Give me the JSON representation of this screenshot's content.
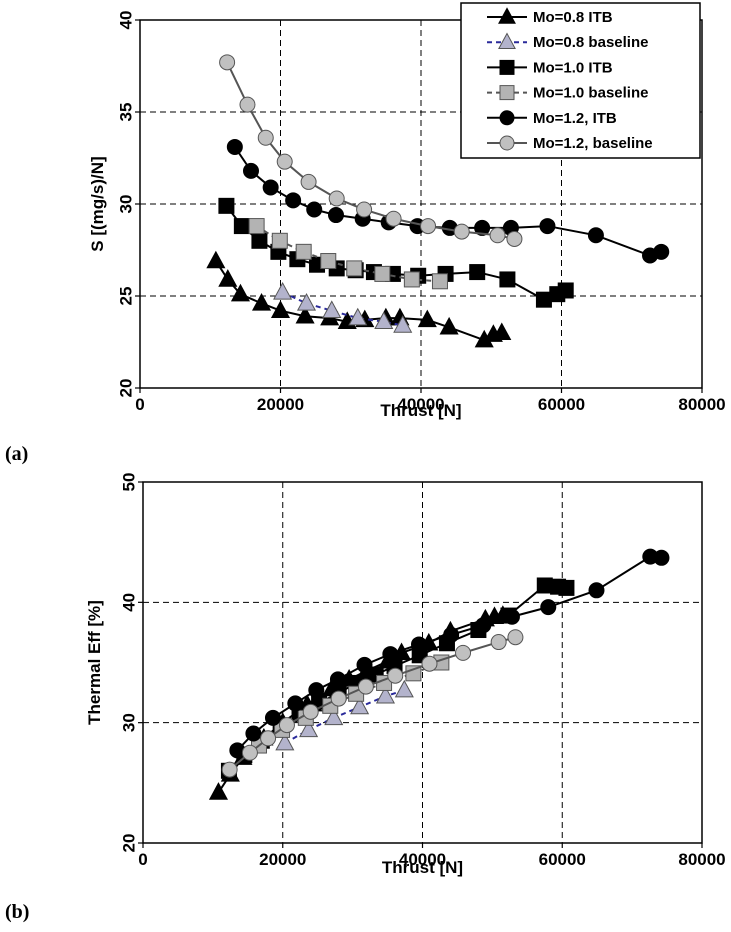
{
  "chart_data": [
    {
      "type": "line",
      "panel_label": "(a)",
      "xlabel": "Thrust [N]",
      "ylabel": "S [(mg/s)/N]",
      "xlim": [
        0,
        80000
      ],
      "ylim": [
        20,
        40
      ],
      "xticks": [
        0,
        20000,
        40000,
        60000,
        80000
      ],
      "yticks": [
        20,
        25,
        30,
        35,
        40
      ],
      "xtick_labels": [
        "0",
        "20000",
        "40000",
        "60000",
        "80000"
      ],
      "ytick_labels": [
        "20",
        "25",
        "30",
        "35",
        "40"
      ],
      "grid": "dashed major gridlines",
      "legend_position": "top-right",
      "series": [
        {
          "name": "Mo=0.8 ITB",
          "marker": "triangle",
          "fill": "#000000",
          "line_color": "#000000",
          "dash": "solid",
          "x": [
            10800,
            12500,
            14300,
            17300,
            20000,
            23500,
            27000,
            29500,
            32000,
            35000,
            37000,
            40900,
            44000,
            49000,
            50300,
            51500
          ],
          "y": [
            26.9,
            25.9,
            25.1,
            24.6,
            24.2,
            23.9,
            23.8,
            23.6,
            23.7,
            23.8,
            23.8,
            23.7,
            23.3,
            22.6,
            22.9,
            23.0
          ]
        },
        {
          "name": "Mo=0.8 baseline",
          "marker": "triangle",
          "fill": "#b3b3cc",
          "line_color": "#2a2a9a",
          "dash": "dashed",
          "x": [
            20300,
            23700,
            27300,
            31000,
            34700,
            37400
          ],
          "y": [
            25.2,
            24.6,
            24.2,
            23.8,
            23.6,
            23.4
          ]
        },
        {
          "name": "Mo=1.0 ITB",
          "marker": "square",
          "fill": "#000000",
          "line_color": "#000000",
          "dash": "solid",
          "x": [
            12300,
            14500,
            17000,
            19700,
            22400,
            25200,
            28000,
            30700,
            33300,
            36000,
            39600,
            43500,
            48000,
            52300,
            57500,
            59400,
            60600
          ],
          "y": [
            29.9,
            28.8,
            28.0,
            27.4,
            27.0,
            26.7,
            26.5,
            26.4,
            26.3,
            26.2,
            26.1,
            26.2,
            26.3,
            25.9,
            24.8,
            25.1,
            25.3
          ]
        },
        {
          "name": "Mo=1.0 baseline",
          "marker": "square",
          "fill": "#b3b3b3",
          "line_color": "#555555",
          "dash": "dashed",
          "x": [
            16600,
            19900,
            23300,
            26800,
            30500,
            34500,
            38700,
            42700
          ],
          "y": [
            28.8,
            28.0,
            27.4,
            26.9,
            26.5,
            26.2,
            25.9,
            25.8
          ]
        },
        {
          "name": "Mo=1.2, ITB",
          "marker": "circle",
          "fill": "#000000",
          "line_color": "#000000",
          "dash": "solid",
          "x": [
            13500,
            15800,
            18600,
            21800,
            24800,
            27900,
            31700,
            35400,
            39500,
            44100,
            48700,
            52800,
            58000,
            64900,
            72600,
            74200
          ],
          "y": [
            33.1,
            31.8,
            30.9,
            30.2,
            29.7,
            29.4,
            29.2,
            29.0,
            28.8,
            28.7,
            28.7,
            28.7,
            28.8,
            28.3,
            27.2,
            27.4
          ]
        },
        {
          "name": "Mo=1.2, baseline",
          "marker": "circle",
          "fill": "#c0c0c0",
          "line_color": "#555555",
          "dash": "solid",
          "x": [
            12400,
            15300,
            17900,
            20600,
            24000,
            28000,
            31900,
            36100,
            41000,
            45800,
            50900,
            53300
          ],
          "y": [
            37.7,
            35.4,
            33.6,
            32.3,
            31.2,
            30.3,
            29.7,
            29.2,
            28.8,
            28.5,
            28.3,
            28.1
          ]
        }
      ]
    },
    {
      "type": "line",
      "panel_label": "(b)",
      "xlabel": "Thrust [N]",
      "ylabel": "Thermal Eff [%]",
      "xlim": [
        0,
        80000
      ],
      "ylim": [
        20,
        50
      ],
      "xticks": [
        0,
        20000,
        40000,
        60000,
        80000
      ],
      "yticks": [
        20,
        30,
        40,
        50
      ],
      "xtick_labels": [
        "0",
        "20000",
        "40000",
        "60000",
        "80000"
      ],
      "ytick_labels": [
        "20",
        "30",
        "40",
        "50"
      ],
      "grid": "dashed major gridlines",
      "series": [
        {
          "name": "Mo=0.8 ITB",
          "marker": "triangle",
          "fill": "#000000",
          "line_color": "#000000",
          "dash": "solid",
          "x": [
            10800,
            12500,
            14300,
            17300,
            20000,
            23500,
            27000,
            29500,
            32000,
            35000,
            37000,
            40900,
            44000,
            49000,
            50300,
            51500
          ],
          "y": [
            24.2,
            25.7,
            27.1,
            28.7,
            30.0,
            31.5,
            32.8,
            33.6,
            34.3,
            35.1,
            35.8,
            36.6,
            37.6,
            38.6,
            38.8,
            38.9
          ]
        },
        {
          "name": "Mo=0.8 baseline",
          "marker": "triangle",
          "fill": "#b3b3cc",
          "line_color": "#2a2a9a",
          "dash": "dashed",
          "x": [
            20300,
            23700,
            27300,
            31000,
            34700,
            37400
          ],
          "y": [
            28.3,
            29.4,
            30.4,
            31.3,
            32.2,
            32.7
          ]
        },
        {
          "name": "Mo=1.0 ITB",
          "marker": "square",
          "fill": "#000000",
          "line_color": "#000000",
          "dash": "solid",
          "x": [
            12300,
            14500,
            17000,
            19700,
            22400,
            25200,
            28000,
            30700,
            33300,
            36000,
            39600,
            43500,
            48000,
            52300,
            57500,
            59400,
            60600
          ],
          "y": [
            26.0,
            27.3,
            28.5,
            29.6,
            30.7,
            31.6,
            32.5,
            33.3,
            34.0,
            34.7,
            35.6,
            36.6,
            37.7,
            38.9,
            41.4,
            41.3,
            41.2
          ]
        },
        {
          "name": "Mo=1.0 baseline",
          "marker": "square",
          "fill": "#b3b3b3",
          "line_color": "#555555",
          "dash": "dashed",
          "x": [
            16600,
            19900,
            23300,
            26800,
            30500,
            34500,
            38700,
            42700
          ],
          "y": [
            28.1,
            29.4,
            30.4,
            31.4,
            32.4,
            33.3,
            34.1,
            35.0
          ]
        },
        {
          "name": "Mo=1.2, ITB",
          "marker": "circle",
          "fill": "#000000",
          "line_color": "#000000",
          "dash": "solid",
          "x": [
            13500,
            15800,
            18600,
            21800,
            24800,
            27900,
            31700,
            35400,
            39500,
            44100,
            48700,
            52800,
            58000,
            64900,
            72600,
            74200
          ],
          "y": [
            27.7,
            29.1,
            30.4,
            31.6,
            32.7,
            33.6,
            34.8,
            35.7,
            36.5,
            37.3,
            38.1,
            38.8,
            39.6,
            41.0,
            43.8,
            43.7
          ]
        },
        {
          "name": "Mo=1.2, baseline",
          "marker": "circle",
          "fill": "#c0c0c0",
          "line_color": "#555555",
          "dash": "solid",
          "x": [
            12400,
            15300,
            17900,
            20600,
            24000,
            28000,
            31900,
            36100,
            41000,
            45800,
            50900,
            53300
          ],
          "y": [
            26.1,
            27.5,
            28.7,
            29.8,
            30.9,
            32.0,
            33.0,
            33.9,
            34.9,
            35.8,
            36.7,
            37.1
          ]
        }
      ]
    }
  ]
}
